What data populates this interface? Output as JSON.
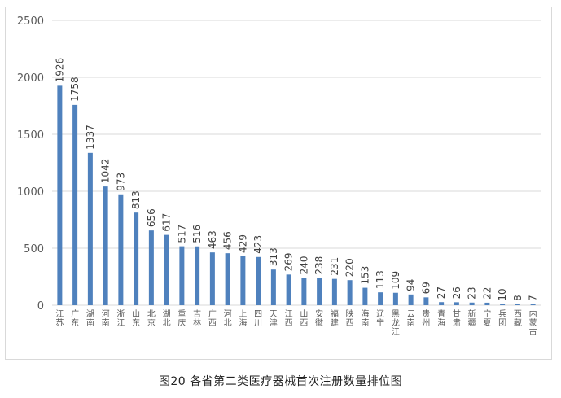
{
  "caption": "图20 各省第二类医疗器械首次注册数量排位图",
  "colors": {
    "bar": "#4f81bd",
    "grid": "#d9d9d9",
    "axis_text": "#595959",
    "label_text": "#404040"
  },
  "chart_data": {
    "type": "bar",
    "categories": [
      "江苏",
      "广东",
      "湖南",
      "河南",
      "浙江",
      "山东",
      "北京",
      "湖北",
      "重庆",
      "吉林",
      "广西",
      "河北",
      "上海",
      "四川",
      "天津",
      "江西",
      "山西",
      "安徽",
      "福建",
      "陕西",
      "海南",
      "辽宁",
      "黑龙江",
      "云南",
      "贵州",
      "青海",
      "甘肃",
      "新疆",
      "宁夏",
      "兵团",
      "西藏",
      "内蒙古"
    ],
    "values": [
      1926,
      1758,
      1337,
      1042,
      973,
      813,
      656,
      617,
      517,
      516,
      463,
      456,
      429,
      423,
      313,
      269,
      240,
      238,
      231,
      220,
      153,
      113,
      109,
      94,
      69,
      27,
      26,
      23,
      22,
      10,
      8,
      7
    ],
    "ylim": [
      0,
      2500
    ],
    "yticks": [
      0,
      500,
      1000,
      1500,
      2000,
      2500
    ],
    "grid": true,
    "legend": "none",
    "data_labels": true
  }
}
